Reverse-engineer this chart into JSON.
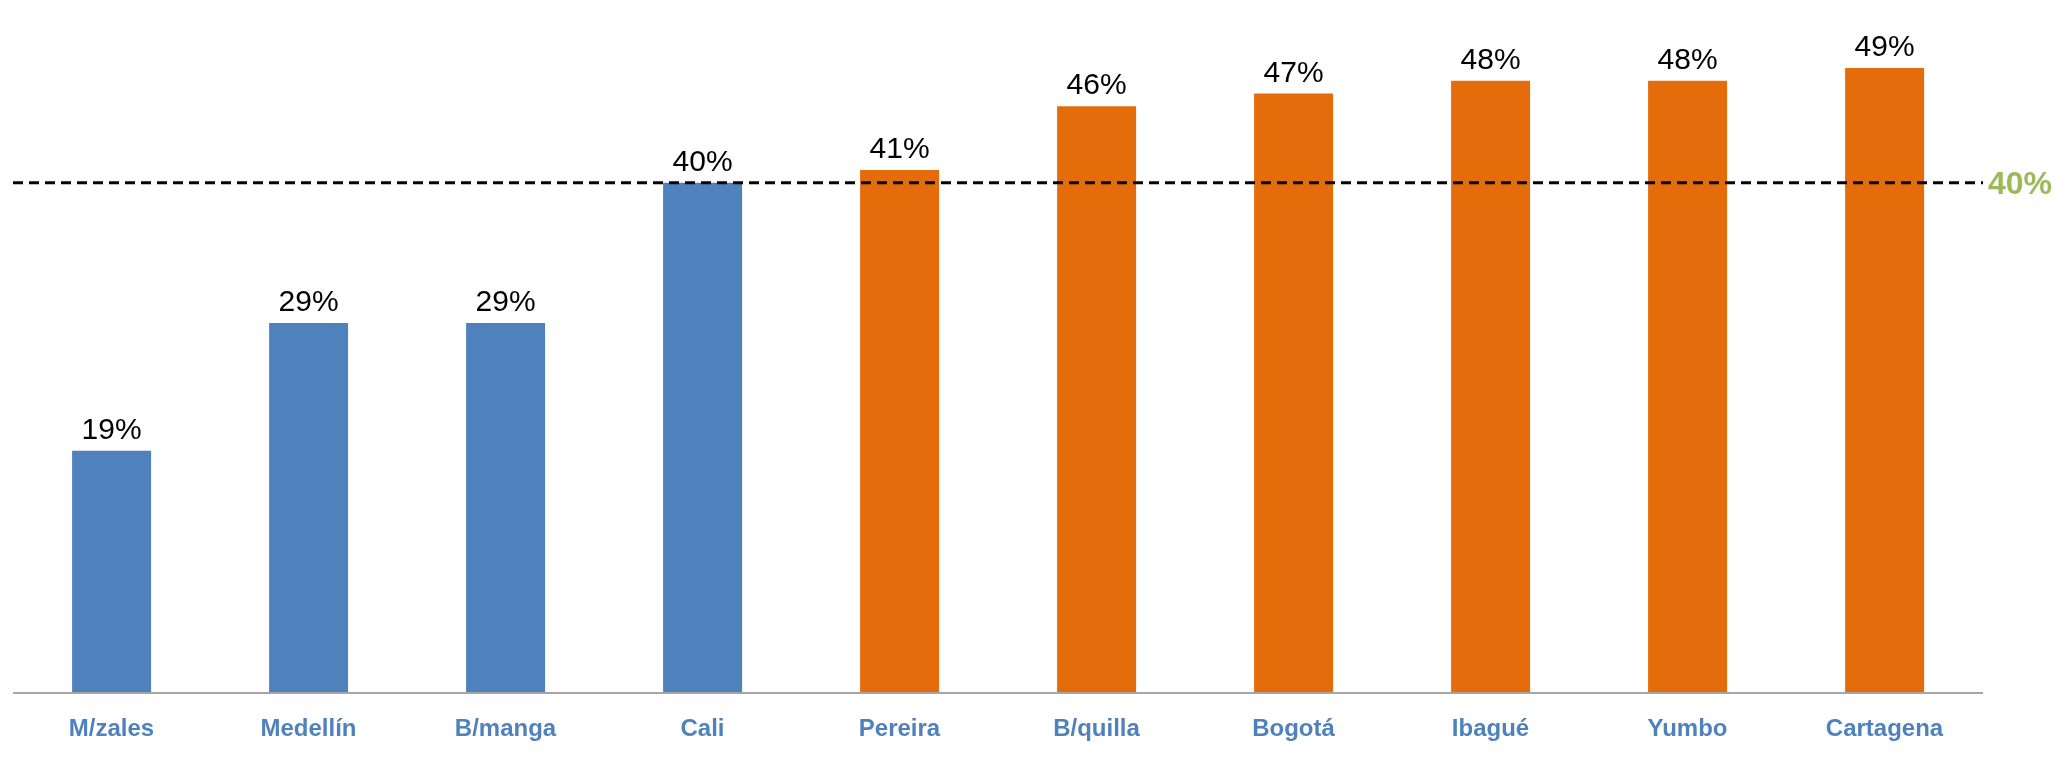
{
  "chart_data": {
    "type": "bar",
    "categories": [
      "M/zales",
      "Medellín",
      "B/manga",
      "Cali",
      "Pereira",
      "B/quilla",
      "Bogotá",
      "Ibagué",
      "Yumbo",
      "Cartagena"
    ],
    "values": [
      19,
      29,
      29,
      40,
      41,
      46,
      47,
      48,
      48,
      49
    ],
    "colors": [
      "#4f81bd",
      "#4f81bd",
      "#4f81bd",
      "#4f81bd",
      "#e46c0a",
      "#e46c0a",
      "#e46c0a",
      "#e46c0a",
      "#e46c0a",
      "#e46c0a"
    ],
    "value_labels": [
      "19%",
      "29%",
      "29%",
      "40%",
      "41%",
      "46%",
      "47%",
      "48%",
      "48%",
      "49%"
    ],
    "ref_lines": [
      {
        "axis": "y",
        "value": 40,
        "label": "40%",
        "color": "#000000",
        "line_style": "dashed"
      }
    ],
    "grid": false,
    "legend": false
  }
}
